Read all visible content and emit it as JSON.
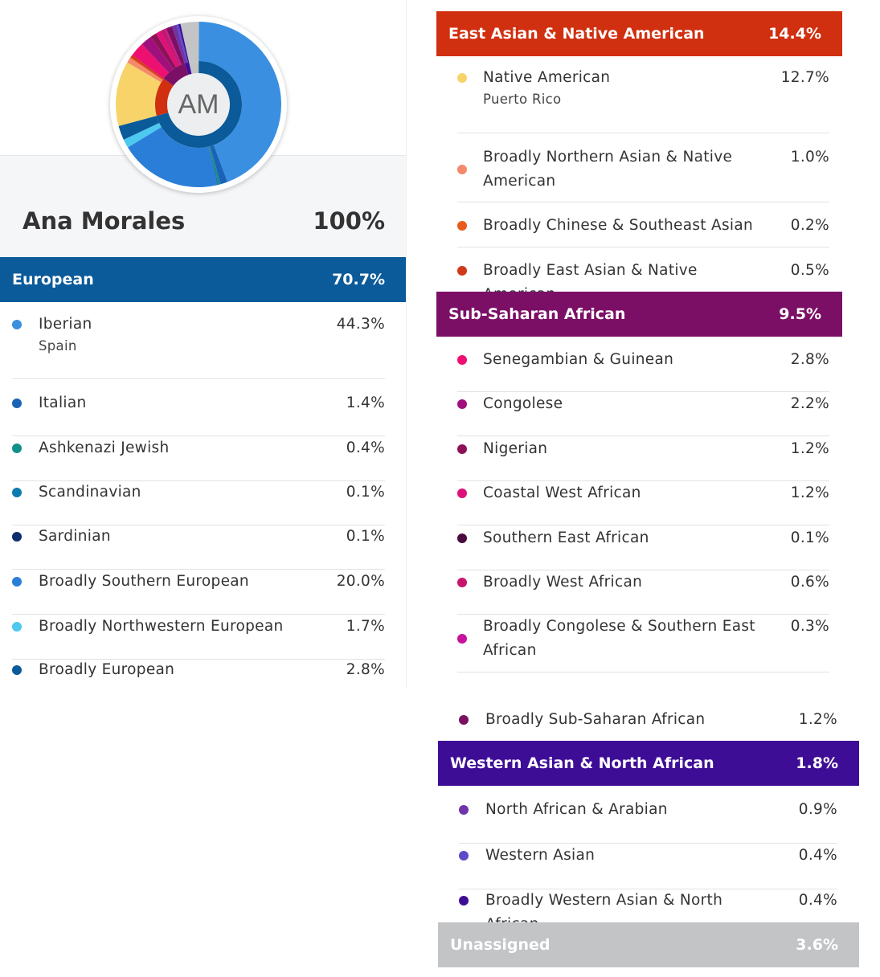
{
  "profile": {
    "initials": "AM",
    "name": "Ana Morales",
    "total": "100%"
  },
  "groups": [
    {
      "name": "European",
      "pct": "70.7%",
      "color": "#0b5a99",
      "items": [
        {
          "label": "Iberian",
          "pct": "44.3%",
          "sub": "Spain",
          "color": "#3a8fe0",
          "value": 44.3
        },
        {
          "label": "Italian",
          "pct": "1.4%",
          "color": "#1a62b8",
          "value": 1.4
        },
        {
          "label": "Ashkenazi Jewish",
          "pct": "0.4%",
          "color": "#11908a",
          "value": 0.4
        },
        {
          "label": "Scandinavian",
          "pct": "0.1%",
          "color": "#0b7bb0",
          "value": 0.1
        },
        {
          "label": "Sardinian",
          "pct": "0.1%",
          "color": "#0d2d6b",
          "value": 0.1
        },
        {
          "label": "Broadly Southern European",
          "pct": "20.0%",
          "color": "#2a7ed8",
          "value": 20.0
        },
        {
          "label": "Broadly Northwestern European",
          "pct": "1.7%",
          "color": "#4dc8ee",
          "value": 1.7
        },
        {
          "label": "Broadly European",
          "pct": "2.8%",
          "color": "#0b5a99",
          "value": 2.8
        }
      ]
    },
    {
      "name": "East Asian & Native American",
      "pct": "14.4%",
      "color": "#d03010",
      "items": [
        {
          "label": "Native American",
          "pct": "12.7%",
          "sub": "Puerto Rico",
          "color": "#f7d36a",
          "value": 12.7
        },
        {
          "label": "Broadly Northern Asian & Native American",
          "pct": "1.0%",
          "color": "#f4896b",
          "value": 1.0
        },
        {
          "label": "Broadly Chinese & Southeast Asian",
          "pct": "0.2%",
          "color": "#e85a1e",
          "value": 0.2
        },
        {
          "label": "Broadly East Asian & Native American",
          "pct": "0.5%",
          "color": "#d03a1a",
          "value": 0.5
        }
      ]
    },
    {
      "name": "Sub-Saharan African",
      "pct": "9.5%",
      "color": "#7b0f66",
      "items": [
        {
          "label": "Senegambian & Guinean",
          "pct": "2.8%",
          "color": "#ee1070",
          "value": 2.8
        },
        {
          "label": "Congolese",
          "pct": "2.2%",
          "color": "#a0107d",
          "value": 2.2
        },
        {
          "label": "Nigerian",
          "pct": "1.2%",
          "color": "#8c1256",
          "value": 1.2
        },
        {
          "label": "Coastal West African",
          "pct": "1.2%",
          "color": "#e0107b",
          "value": 1.2
        },
        {
          "label": "Southern East African",
          "pct": "0.1%",
          "color": "#4a0a3d",
          "value": 0.1
        },
        {
          "label": "Broadly West African",
          "pct": "0.6%",
          "color": "#c8146b",
          "value": 0.6
        },
        {
          "label": "Broadly Congolese & Southern East African",
          "pct": "0.3%",
          "color": "#c8129b",
          "value": 0.3
        },
        {
          "label": "Broadly Sub-Saharan African",
          "pct": "1.2%",
          "color": "#7b1060",
          "value": 1.2
        }
      ]
    },
    {
      "name": "Western Asian & North African",
      "pct": "1.8%",
      "color": "#3e0d96",
      "items": [
        {
          "label": "North African & Arabian",
          "pct": "0.9%",
          "color": "#6e35a8",
          "value": 0.9
        },
        {
          "label": "Western Asian",
          "pct": "0.4%",
          "color": "#5a4cc8",
          "value": 0.4
        },
        {
          "label": "Broadly Western Asian & North African",
          "pct": "0.4%",
          "color": "#3e0d96",
          "value": 0.4
        }
      ]
    },
    {
      "name": "Unassigned",
      "pct": "3.6%",
      "color": "#c3c4c6",
      "items": [
        {
          "value": 3.6,
          "color": "#c3c4c6"
        }
      ]
    }
  ]
}
